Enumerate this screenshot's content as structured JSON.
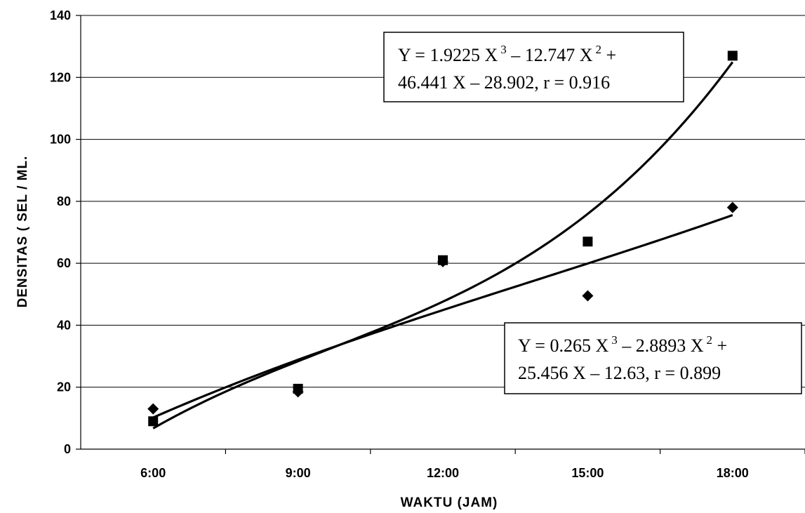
{
  "chart_data": {
    "type": "scatter",
    "title": "",
    "xlabel": "WAKTU (JAM)",
    "ylabel": "DENSITAS ( SEL / ML.",
    "categories": [
      "6:00",
      "9:00",
      "12:00",
      "15:00",
      "18:00"
    ],
    "ylim": [
      0,
      140
    ],
    "yticks": [
      0,
      20,
      40,
      60,
      80,
      100,
      120,
      140
    ],
    "grid": "horizontal",
    "legend": "none",
    "series": [
      {
        "marker": "square",
        "color": "#000000",
        "values": [
          9,
          19.5,
          61,
          67,
          127
        ],
        "trendline": {
          "type": "polynomial",
          "order": 3,
          "coefficients": [
            1.9225,
            -12.747,
            46.441,
            -28.902
          ],
          "equation_line1": "Y = 1.9225 X",
          "exp1": "3",
          "mid1": " – 12.747 X",
          "exp2": "2",
          "end1": " +",
          "equation_line2": "46.441 X – 28.902, r = 0.916"
        }
      },
      {
        "marker": "diamond",
        "color": "#000000",
        "values": [
          13,
          18.5,
          60.5,
          49.5,
          78
        ],
        "trendline": {
          "type": "polynomial",
          "order": 3,
          "coefficients": [
            0.265,
            -2.8893,
            25.456,
            -12.63
          ],
          "equation_line1": "Y = 0.265 X",
          "exp1": "3",
          "mid1": " – 2.8893 X",
          "exp2": "2",
          "end1": " +",
          "equation_line2": "25.456 X – 12.63, r = 0.899"
        }
      }
    ]
  }
}
